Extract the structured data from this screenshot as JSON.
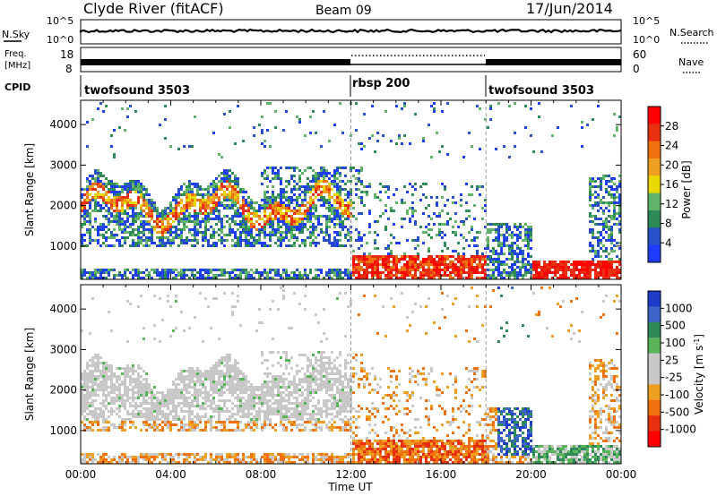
{
  "header": {
    "title": "Clyde River (fitACF)",
    "beam": "Beam 09",
    "date": "17/Jun/2014"
  },
  "noise_panel": {
    "left_label": "N.Sky",
    "right_label": "N.Search",
    "ticks_left": [
      "10^5",
      "10^0"
    ],
    "ticks_right": [
      "10^5",
      "10^0"
    ]
  },
  "freq_panel": {
    "left_label_line1": "Freq.",
    "left_label_line2": "[MHz]",
    "right_label": "Nave",
    "ticks_left": [
      "18",
      "8"
    ],
    "ticks_right": [
      "60",
      "0"
    ]
  },
  "cpid_panel": {
    "label": "CPID",
    "segments": [
      {
        "name": "twofsound 3503",
        "start_h": 0,
        "end_h": 12
      },
      {
        "name": "rbsp 200",
        "start_h": 12,
        "end_h": 18
      },
      {
        "name": "twofsound 3503",
        "start_h": 18,
        "end_h": 24
      }
    ]
  },
  "colors": {
    "power_scale": [
      "#1e3cff",
      "#2850c8",
      "#2e8b57",
      "#62b36a",
      "#e8d800",
      "#f0a020",
      "#f07010",
      "#e83010",
      "#ff0000"
    ],
    "velocity_scale": [
      "#1e3cc8",
      "#3c64c8",
      "#2e8b57",
      "#5ab45a",
      "#c8c8c8",
      "#c8c8c8",
      "#f0a020",
      "#f07010",
      "#e83010",
      "#ff0000"
    ]
  },
  "chart_data": [
    {
      "type": "heatmap",
      "title": "",
      "xlabel": "",
      "ylabel": "Slant Range [km]",
      "x_ticks": [
        "00:00",
        "04:00",
        "08:00",
        "12:00",
        "16:00",
        "20:00",
        "00:00"
      ],
      "y_ticks": [
        1000,
        2000,
        3000,
        4000
      ],
      "xlim_hours": [
        0,
        24
      ],
      "ylim_km": [
        180,
        4600
      ],
      "colorbar": {
        "label": "Power [dB]",
        "ticks": [
          4,
          8,
          12,
          16,
          20,
          24,
          28
        ]
      }
    },
    {
      "type": "heatmap",
      "title": "",
      "xlabel": "Time UT",
      "ylabel": "Slant Range [km]",
      "x_ticks": [
        "00:00",
        "04:00",
        "08:00",
        "12:00",
        "16:00",
        "20:00",
        "00:00"
      ],
      "y_ticks": [
        1000,
        2000,
        3000,
        4000
      ],
      "xlim_hours": [
        0,
        24
      ],
      "ylim_km": [
        180,
        4600
      ],
      "colorbar": {
        "label": "Velocity [m s-1]",
        "ticks": [
          "1000",
          "500",
          "100",
          "25",
          "-25",
          "-100",
          "-500",
          "-1000"
        ]
      }
    }
  ]
}
